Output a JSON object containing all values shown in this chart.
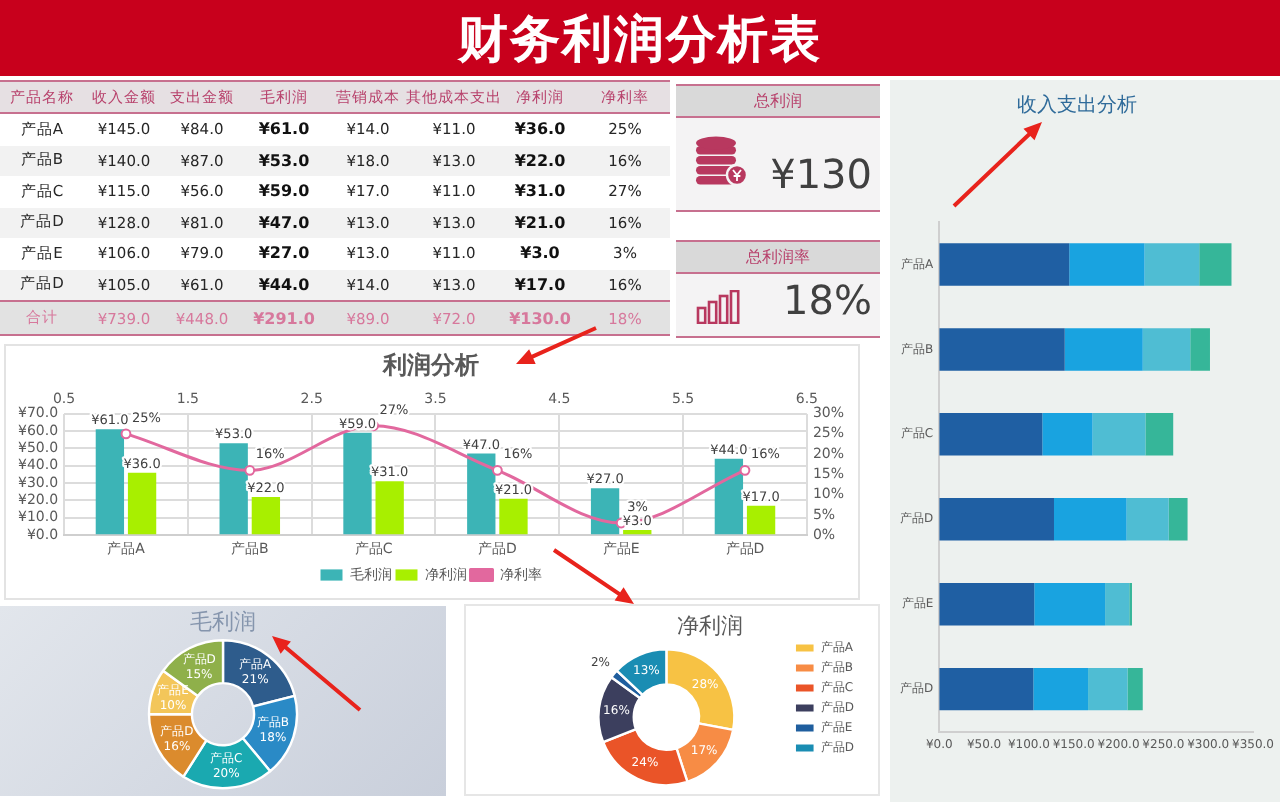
{
  "chart_data": [
    {
      "type": "other",
      "title": "财务利润分析表",
      "ylabel": "产品名称",
      "categories": [
        "产品A",
        "产品B",
        "产品C",
        "产品D",
        "产品E",
        "产品D",
        "合计"
      ],
      "series": [
        {
          "name": "收入金额",
          "colors": [
            "#ffffff",
            "#f2f2f2",
            "#ffffff",
            "#f2f2f2",
            "#ffffff",
            "#f2f2f2",
            "#e2e2e2"
          ],
          "values": [
            145,
            140,
            115,
            128,
            106,
            105,
            739
          ],
          "value_labels": [
            "¥145.0",
            "¥140.0",
            "¥115.0",
            "¥128.0",
            "¥106.0",
            "¥105.0",
            "¥739.0"
          ]
        },
        {
          "name": "支出金额",
          "colors": [
            "#ffffff",
            "#f2f2f2",
            "#ffffff",
            "#f2f2f2",
            "#ffffff",
            "#f2f2f2",
            "#e2e2e2"
          ],
          "values": [
            84,
            87,
            56,
            81,
            79,
            61,
            448
          ],
          "value_labels": [
            "¥84.0",
            "¥87.0",
            "¥56.0",
            "¥81.0",
            "¥79.0",
            "¥61.0",
            "¥448.0"
          ]
        },
        {
          "name": "毛利润",
          "colors": [
            "#ffffff",
            "#f2f2f2",
            "#ffffff",
            "#f2f2f2",
            "#ffffff",
            "#f2f2f2",
            "#e2e2e2"
          ],
          "values": [
            61,
            53,
            59,
            47,
            27,
            44,
            291
          ],
          "value_labels": [
            "¥61.0",
            "¥53.0",
            "¥59.0",
            "¥47.0",
            "¥27.0",
            "¥44.0",
            "¥291.0"
          ]
        },
        {
          "name": "营销成本",
          "colors": [
            "#ffffff",
            "#f2f2f2",
            "#ffffff",
            "#f2f2f2",
            "#ffffff",
            "#f2f2f2",
            "#e2e2e2"
          ],
          "values": [
            14,
            18,
            17,
            13,
            13,
            14,
            89
          ],
          "value_labels": [
            "¥14.0",
            "¥18.0",
            "¥17.0",
            "¥13.0",
            "¥13.0",
            "¥14.0",
            "¥89.0"
          ]
        },
        {
          "name": "其他成本支出",
          "colors": [
            "#ffffff",
            "#f2f2f2",
            "#ffffff",
            "#f2f2f2",
            "#ffffff",
            "#f2f2f2",
            "#e2e2e2"
          ],
          "values": [
            11,
            13,
            11,
            13,
            11,
            13,
            72
          ],
          "value_labels": [
            "¥11.0",
            "¥13.0",
            "¥11.0",
            "¥13.0",
            "¥11.0",
            "¥13.0",
            "¥72.0"
          ]
        },
        {
          "name": "净利润",
          "colors": [
            "#ffffff",
            "#f2f2f2",
            "#ffffff",
            "#f2f2f2",
            "#ffffff",
            "#f2f2f2",
            "#e2e2e2"
          ],
          "values": [
            36,
            22,
            31,
            21,
            3,
            17,
            130
          ],
          "value_labels": [
            "¥36.0",
            "¥22.0",
            "¥31.0",
            "¥21.0",
            "¥3.0",
            "¥17.0",
            "¥130.0"
          ]
        },
        {
          "name": "净利率",
          "colors": [
            "#ffffff",
            "#f2f2f2",
            "#ffffff",
            "#f2f2f2",
            "#ffffff",
            "#f2f2f2",
            "#e2e2e2"
          ],
          "values": [
            25,
            16,
            27,
            16,
            3,
            16,
            18
          ],
          "value_labels": [
            "25%",
            "16%",
            "27%",
            "16%",
            "3%",
            "16%",
            "18%"
          ]
        }
      ]
    },
    {
      "type": "other",
      "title": "总利润",
      "annotations": [
        "¥130"
      ]
    },
    {
      "type": "other",
      "title": "总利润率",
      "annotations": [
        "18%"
      ]
    },
    {
      "type": "bar",
      "title": "收入支出分析",
      "orientation": "horizontal",
      "stacked": true,
      "categories": [
        "产品A",
        "产品B",
        "产品C",
        "产品D",
        "产品E",
        "产品D"
      ],
      "series": [
        {
          "color": "#1f5fa3",
          "values": [
            145,
            140,
            115,
            128,
            106,
            105
          ]
        },
        {
          "color": "#19a3e0",
          "values": [
            84,
            87,
            56,
            81,
            79,
            61
          ]
        },
        {
          "color": "#4fbdd3",
          "values": [
            61,
            53,
            59,
            47,
            27,
            44
          ]
        },
        {
          "color": "#36b699",
          "values": [
            36,
            22,
            31,
            21,
            3,
            17
          ]
        }
      ],
      "xlim": [
        0,
        350
      ],
      "xticks": [
        {
          "value": 0,
          "label": "¥0.0"
        },
        {
          "value": 50,
          "label": "¥50.0"
        },
        {
          "value": 100,
          "label": "¥100.0"
        },
        {
          "value": 150,
          "label": "¥150.0"
        },
        {
          "value": 200,
          "label": "¥200.0"
        },
        {
          "value": 250,
          "label": "¥250.0"
        },
        {
          "value": 300,
          "label": "¥300.0"
        },
        {
          "value": 350,
          "label": "¥350.0"
        }
      ]
    },
    {
      "type": "bar",
      "title": "利润分析",
      "categories": [
        "产品A",
        "产品B",
        "产品C",
        "产品D",
        "产品E",
        "产品D"
      ],
      "series": [
        {
          "name": "毛利润",
          "color": "#3cb4b6",
          "values": [
            61,
            53,
            59,
            47,
            27,
            44
          ],
          "value_labels": [
            "¥61.0",
            "¥53.0",
            "¥59.0",
            "¥47.0",
            "¥27.0",
            "¥44.0"
          ]
        },
        {
          "name": "净利润",
          "color": "#a8ef00",
          "values": [
            36,
            22,
            31,
            21,
            3,
            17
          ],
          "value_labels": [
            "¥36.0",
            "¥22.0",
            "¥31.0",
            "¥21.0",
            "¥3.0",
            "¥17.0"
          ]
        },
        {
          "name": "净利率",
          "type": "line",
          "axis": "y2",
          "color": "#e2689e",
          "values": [
            25,
            16,
            27,
            16,
            3,
            16
          ],
          "value_labels": [
            "25%",
            "16%",
            "27%",
            "16%",
            "3%",
            "16%"
          ]
        }
      ],
      "ylim": [
        0,
        70
      ],
      "yticks": [
        {
          "value": 0,
          "label": "¥0.0"
        },
        {
          "value": 10,
          "label": "¥10.0"
        },
        {
          "value": 20,
          "label": "¥20.0"
        },
        {
          "value": 30,
          "label": "¥30.0"
        },
        {
          "value": 40,
          "label": "¥40.0"
        },
        {
          "value": 50,
          "label": "¥50.0"
        },
        {
          "value": 60,
          "label": "¥60.0"
        },
        {
          "value": 70,
          "label": "¥70.0"
        }
      ],
      "y2lim": [
        0,
        30
      ],
      "y2ticks": [
        {
          "value": 0,
          "label": "0%"
        },
        {
          "value": 5,
          "label": "5%"
        },
        {
          "value": 10,
          "label": "10%"
        },
        {
          "value": 15,
          "label": "15%"
        },
        {
          "value": 20,
          "label": "20%"
        },
        {
          "value": 25,
          "label": "25%"
        },
        {
          "value": 30,
          "label": "30%"
        }
      ],
      "x2lim": [
        0.5,
        6.5
      ],
      "x2ticks": [
        0.5,
        1.5,
        2.5,
        3.5,
        4.5,
        5.5,
        6.5
      ],
      "grid": true,
      "legend": "bottom",
      "marker": "circle"
    },
    {
      "type": "donut",
      "title": "毛利润",
      "categories": [
        "产品A",
        "产品B",
        "产品C",
        "产品D",
        "产品E",
        "产品D"
      ],
      "values": [
        21,
        18,
        20,
        16,
        10,
        15
      ],
      "value_labels": [
        "21%",
        "18%",
        "20%",
        "16%",
        "10%",
        "15%"
      ],
      "colors": [
        "#2e5c8c",
        "#2a8ac6",
        "#1aa9b0",
        "#db8b2d",
        "#f3c65a",
        "#8fb04a"
      ]
    },
    {
      "type": "donut",
      "title": "净利润",
      "categories": [
        "产品A",
        "产品B",
        "产品C",
        "产品D",
        "产品E",
        "产品D"
      ],
      "values": [
        28,
        17,
        24,
        16,
        2,
        13
      ],
      "value_labels": [
        "28%",
        "17%",
        "24%",
        "16%",
        "2%",
        "13%"
      ],
      "colors": [
        "#f7c244",
        "#f78c45",
        "#ea5428",
        "#3c3f5e",
        "#1f5e9e",
        "#1a8db3"
      ],
      "legend": "right"
    }
  ]
}
